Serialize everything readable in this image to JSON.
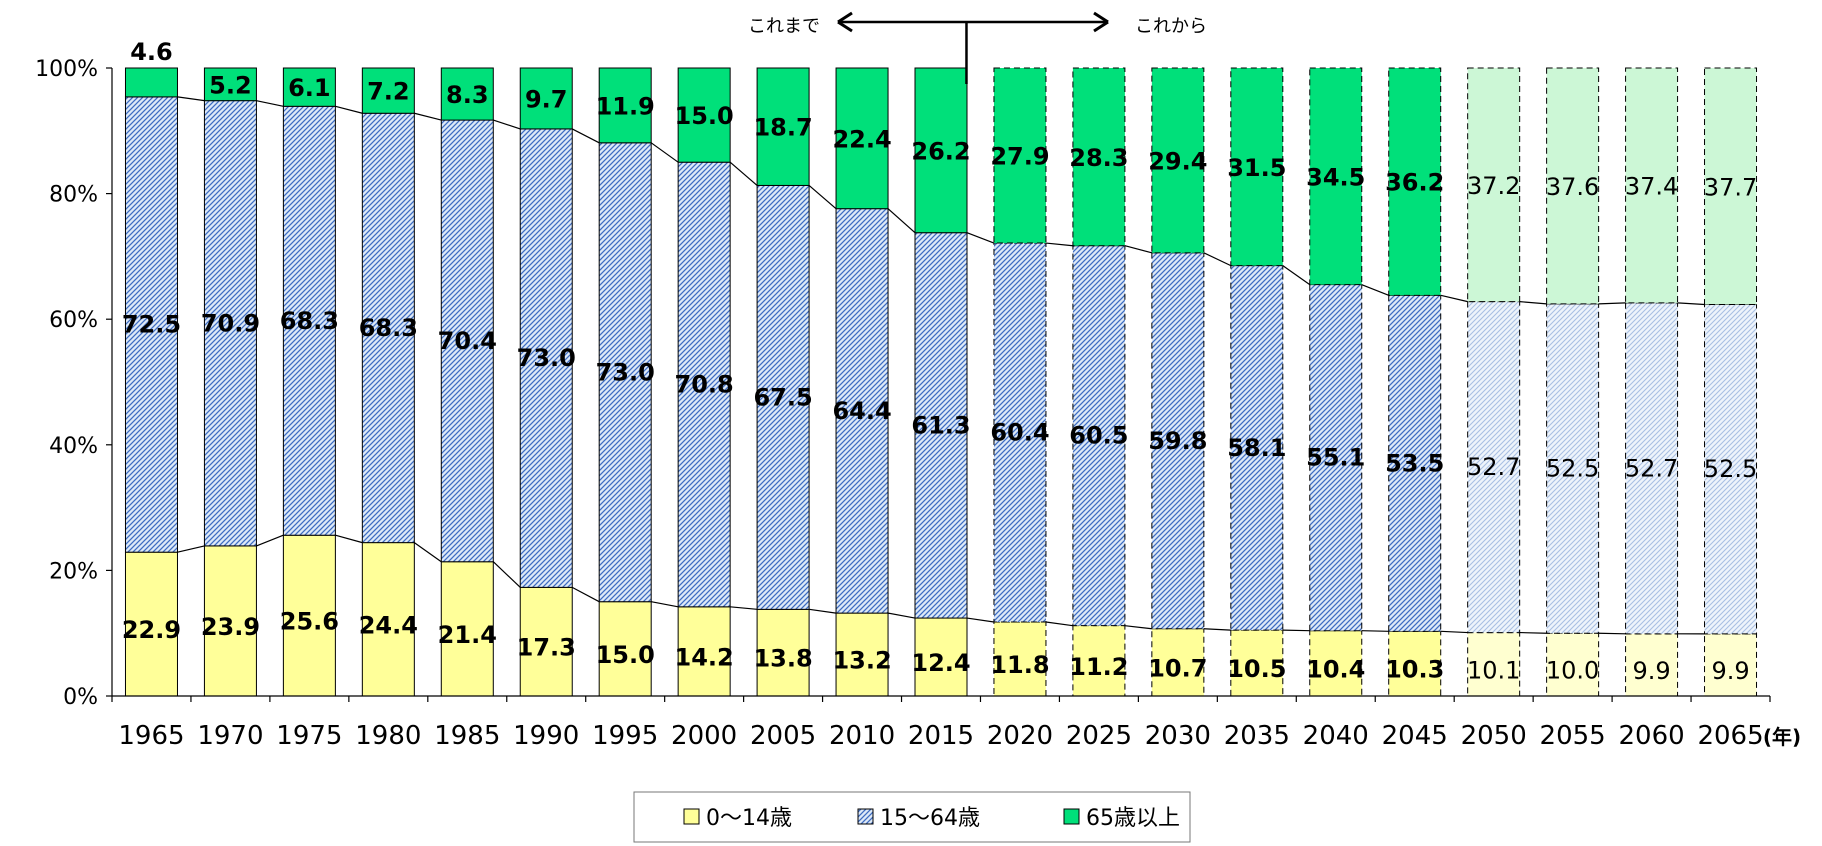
{
  "chart_data": {
    "type": "bar",
    "stacked": true,
    "percent_stacked": true,
    "categories": [
      "1965",
      "1970",
      "1975",
      "1980",
      "1985",
      "1990",
      "1995",
      "2000",
      "2005",
      "2010",
      "2015",
      "2020",
      "2025",
      "2030",
      "2035",
      "2040",
      "2045",
      "2050",
      "2055",
      "2060",
      "2065"
    ],
    "series": [
      {
        "name": "0～14歳",
        "color": "#ffff99",
        "values": [
          22.9,
          23.9,
          25.6,
          24.4,
          21.4,
          17.3,
          15.0,
          14.2,
          13.8,
          13.2,
          12.4,
          11.8,
          11.2,
          10.7,
          10.5,
          10.4,
          10.3,
          10.1,
          10.0,
          9.9,
          9.9
        ]
      },
      {
        "name": "15～64歳",
        "color": "#c5d9f1",
        "values": [
          72.5,
          70.9,
          68.3,
          68.3,
          70.4,
          73.0,
          73.0,
          70.8,
          67.5,
          64.4,
          61.3,
          60.4,
          60.5,
          59.8,
          58.1,
          55.1,
          53.5,
          52.7,
          52.5,
          52.7,
          52.5
        ]
      },
      {
        "name": "65歳以上",
        "color": "#00e07a",
        "values": [
          4.6,
          5.2,
          6.1,
          7.2,
          8.3,
          9.7,
          11.9,
          15.0,
          18.7,
          22.4,
          26.2,
          27.9,
          28.3,
          29.4,
          31.5,
          34.5,
          36.2,
          37.2,
          37.6,
          37.4,
          37.7
        ]
      }
    ],
    "y_ticks": [
      "0%",
      "20%",
      "40%",
      "60%",
      "80%",
      "100%"
    ],
    "ylim": [
      0,
      100
    ],
    "x_unit": "(年)",
    "projection_from": "2020",
    "nav_past": "これまで",
    "nav_future": "これから",
    "grid": false,
    "legend_position": "bottom"
  }
}
